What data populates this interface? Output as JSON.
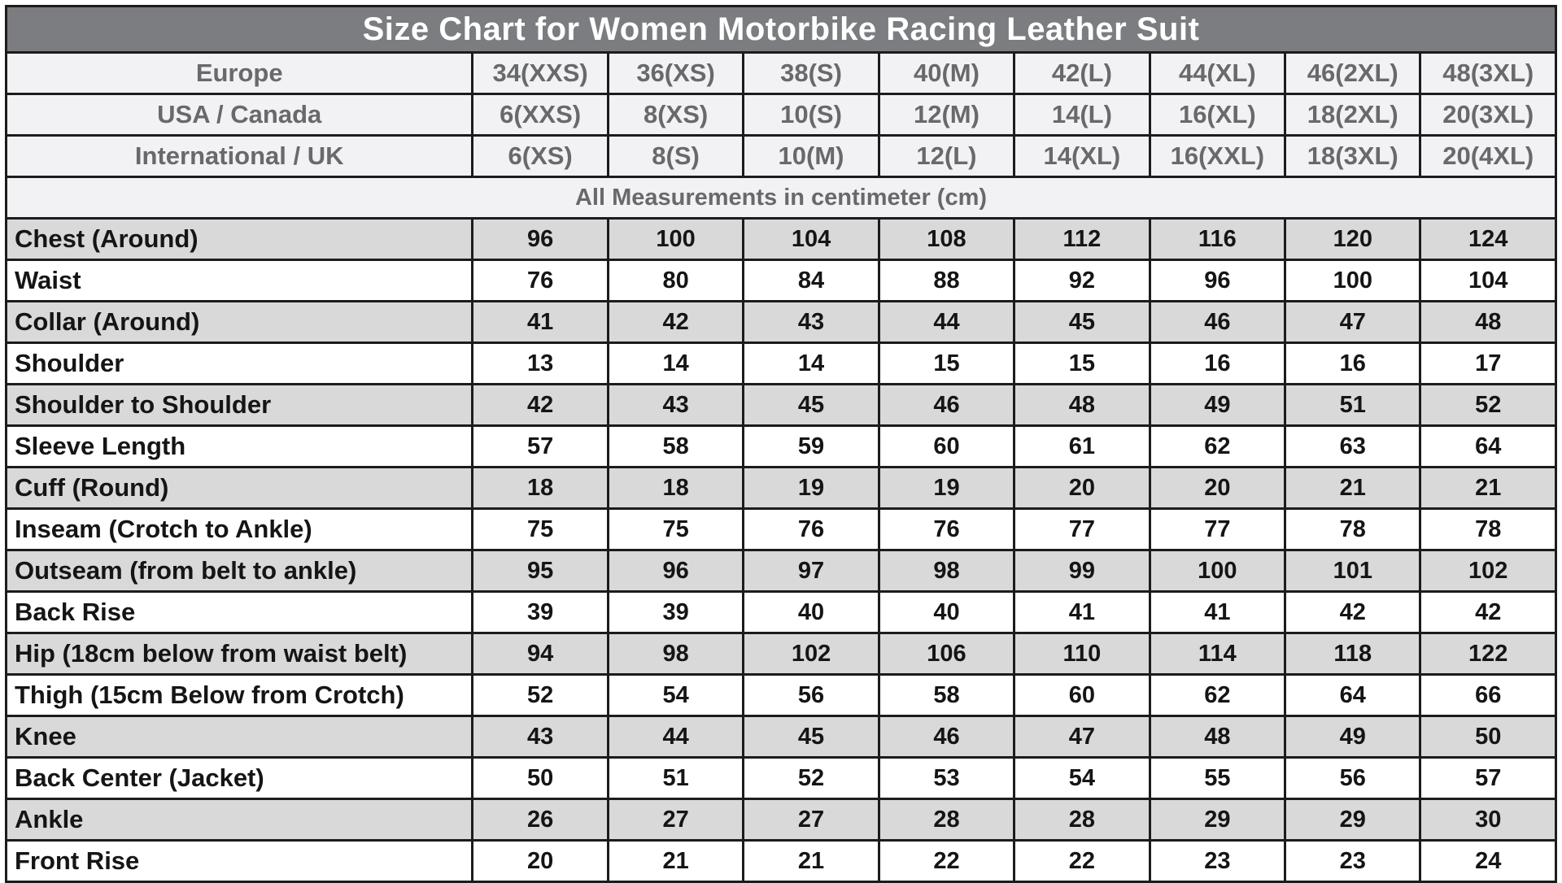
{
  "colors": {
    "title_bg": "#7c7d81",
    "title_text": "#ffffff",
    "header_bg": "#f2f2f4",
    "header_text": "#68696d",
    "stripe_bg": "#d9d9da",
    "row_text": "#151515",
    "border": "#1c1c1c"
  },
  "chart_data": {
    "type": "table",
    "title": "Size Chart for Women Motorbike Racing Leather Suit",
    "note": "All Measurements in centimeter (cm)",
    "header_rows": [
      {
        "label": "Europe",
        "values": [
          "34(XXS)",
          "36(XS)",
          "38(S)",
          "40(M)",
          "42(L)",
          "44(XL)",
          "46(2XL)",
          "48(3XL)"
        ]
      },
      {
        "label": "USA / Canada",
        "values": [
          "6(XXS)",
          "8(XS)",
          "10(S)",
          "12(M)",
          "14(L)",
          "16(XL)",
          "18(2XL)",
          "20(3XL)"
        ]
      },
      {
        "label": "International / UK",
        "values": [
          "6(XS)",
          "8(S)",
          "10(M)",
          "12(L)",
          "14(XL)",
          "16(XXL)",
          "18(3XL)",
          "20(4XL)"
        ]
      }
    ],
    "rows": [
      {
        "label": "Chest (Around)",
        "values": [
          96,
          100,
          104,
          108,
          112,
          116,
          120,
          124
        ]
      },
      {
        "label": "Waist",
        "values": [
          76,
          80,
          84,
          88,
          92,
          96,
          100,
          104
        ]
      },
      {
        "label": "Collar (Around)",
        "values": [
          41,
          42,
          43,
          44,
          45,
          46,
          47,
          48
        ]
      },
      {
        "label": "Shoulder",
        "values": [
          13,
          14,
          14,
          15,
          15,
          16,
          16,
          17
        ]
      },
      {
        "label": "Shoulder to Shoulder",
        "values": [
          42,
          43,
          45,
          46,
          48,
          49,
          51,
          52
        ]
      },
      {
        "label": "Sleeve Length",
        "values": [
          57,
          58,
          59,
          60,
          61,
          62,
          63,
          64
        ]
      },
      {
        "label": "Cuff (Round)",
        "values": [
          18,
          18,
          19,
          19,
          20,
          20,
          21,
          21
        ]
      },
      {
        "label": "Inseam (Crotch to Ankle)",
        "values": [
          75,
          75,
          76,
          76,
          77,
          77,
          78,
          78
        ]
      },
      {
        "label": "Outseam (from belt to ankle)",
        "values": [
          95,
          96,
          97,
          98,
          99,
          100,
          101,
          102
        ]
      },
      {
        "label": "Back Rise",
        "values": [
          39,
          39,
          40,
          40,
          41,
          41,
          42,
          42
        ]
      },
      {
        "label": "Hip (18cm below from waist belt)",
        "values": [
          94,
          98,
          102,
          106,
          110,
          114,
          118,
          122
        ]
      },
      {
        "label": "Thigh (15cm Below from Crotch)",
        "values": [
          52,
          54,
          56,
          58,
          60,
          62,
          64,
          66
        ]
      },
      {
        "label": "Knee",
        "values": [
          43,
          44,
          45,
          46,
          47,
          48,
          49,
          50
        ]
      },
      {
        "label": "Back Center (Jacket)",
        "values": [
          50,
          51,
          52,
          53,
          54,
          55,
          56,
          57
        ]
      },
      {
        "label": "Ankle",
        "values": [
          26,
          27,
          27,
          28,
          28,
          29,
          29,
          30
        ]
      },
      {
        "label": "Front Rise",
        "values": [
          20,
          21,
          21,
          22,
          22,
          23,
          23,
          24
        ]
      }
    ]
  }
}
